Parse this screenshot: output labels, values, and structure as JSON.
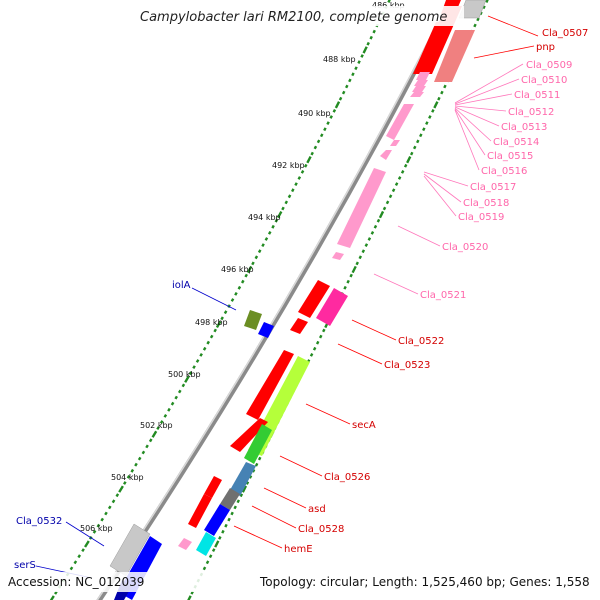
{
  "title": "Campylobacter lari RM2100, complete genome",
  "accession": "Accession: NC_012039",
  "summary": "Topology: circular; Length: 1,525,460 bp; Genes: 1,558",
  "ticks": [
    "486 kbp",
    "488 kbp",
    "490 kbp",
    "492 kbp",
    "494 kbp",
    "496 kbp",
    "498 kbp",
    "500 kbp",
    "502 kbp",
    "504 kbp",
    "506 kbp"
  ],
  "colors": {
    "cds_red": "#ff0000",
    "pink": "#ff99cc",
    "magenta": "#ff2aa0",
    "olive": "#6b8e23",
    "blue": "#0000ff",
    "lime": "#b5ff3a",
    "green": "#33cc33",
    "steel": "#4682b4",
    "gray": "#707070",
    "cyan": "#00e5e5",
    "navy": "#0000aa",
    "tick_green": "#228b22",
    "backbone": "#808080"
  },
  "gene_labels": [
    {
      "id": "cla0507",
      "text": "Cla_0507",
      "color": "#d40000"
    },
    {
      "id": "pnp",
      "text": "pnp",
      "color": "#d40000"
    },
    {
      "id": "cla0509",
      "text": "Cla_0509",
      "color": "#ff66aa"
    },
    {
      "id": "cla0510",
      "text": "Cla_0510",
      "color": "#ff66aa"
    },
    {
      "id": "cla0511",
      "text": "Cla_0511",
      "color": "#ff66aa"
    },
    {
      "id": "cla0512",
      "text": "Cla_0512",
      "color": "#ff66aa"
    },
    {
      "id": "cla0513",
      "text": "Cla_0513",
      "color": "#ff66aa"
    },
    {
      "id": "cla0514",
      "text": "Cla_0514",
      "color": "#ff66aa"
    },
    {
      "id": "cla0515",
      "text": "Cla_0515",
      "color": "#ff66aa"
    },
    {
      "id": "cla0516",
      "text": "Cla_0516",
      "color": "#ff66aa"
    },
    {
      "id": "cla0517",
      "text": "Cla_0517",
      "color": "#ff66aa"
    },
    {
      "id": "cla0518",
      "text": "Cla_0518",
      "color": "#ff66aa"
    },
    {
      "id": "cla0519",
      "text": "Cla_0519",
      "color": "#ff66aa"
    },
    {
      "id": "cla0520",
      "text": "Cla_0520",
      "color": "#ff66aa"
    },
    {
      "id": "cla0521",
      "text": "Cla_0521",
      "color": "#ff66aa"
    },
    {
      "id": "cla0522",
      "text": "Cla_0522",
      "color": "#d40000"
    },
    {
      "id": "cla0523",
      "text": "Cla_0523",
      "color": "#d40000"
    },
    {
      "id": "seca",
      "text": "secA",
      "color": "#d40000"
    },
    {
      "id": "cla0526",
      "text": "Cla_0526",
      "color": "#d40000"
    },
    {
      "id": "asd",
      "text": "asd",
      "color": "#d40000"
    },
    {
      "id": "cla0528",
      "text": "Cla_0528",
      "color": "#d40000"
    },
    {
      "id": "heme",
      "text": "hemE",
      "color": "#d40000"
    },
    {
      "id": "iola",
      "text": "iolA",
      "color": "#0000aa"
    },
    {
      "id": "cla0532",
      "text": "Cla_0532",
      "color": "#0000aa"
    },
    {
      "id": "sers",
      "text": "serS",
      "color": "#0000aa"
    }
  ]
}
